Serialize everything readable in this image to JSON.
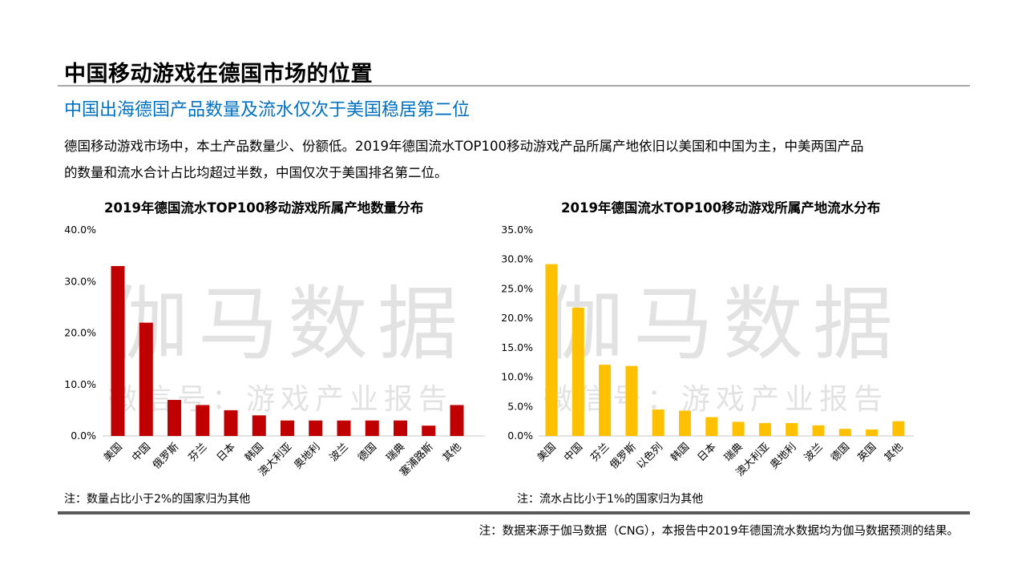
{
  "header": {
    "title": "中国移动游戏在德国市场的位置",
    "subtitle": "中国出海德国产品数量及流水仅次于美国稳居第二位"
  },
  "body": {
    "line1": "德国移动游戏市场中，本土产品数量少、份额低。2019年德国流水TOP100移动游戏产品所属产地依旧以美国和中国为主，中美两国产品",
    "line2": "的数量和流水合计占比均超过半数，中国仅次于美国排名第二位。"
  },
  "watermark": {
    "brand": "伽马数据",
    "wechat": "微信号：游戏产业报告"
  },
  "footer": "注：数据来源于伽马数据（CNG），本报告中2019年德国流水数据均为伽马数据预测的结果。",
  "colors": {
    "left_bars": "#c00000",
    "right_bars": "#ffc000",
    "subtitle": "#0070c0"
  },
  "chart_data": [
    {
      "type": "bar",
      "title": "2019年德国流水TOP100移动游戏所属产地数量分布",
      "note": "注：数量占比小于2%的国家归为其他",
      "categories": [
        "美国",
        "中国",
        "俄罗斯",
        "芬兰",
        "日本",
        "韩国",
        "澳大利亚",
        "奥地利",
        "波兰",
        "德国",
        "瑞典",
        "塞浦路斯",
        "其他"
      ],
      "values": [
        33,
        22,
        7,
        6,
        5,
        4,
        3,
        3,
        3,
        3,
        3,
        2,
        6
      ],
      "unit": "%",
      "ylim": [
        0,
        40
      ],
      "yticks": [
        "0.0%",
        "10.0%",
        "20.0%",
        "30.0%",
        "40.0%"
      ],
      "xlabel": "",
      "ylabel": "",
      "grid": false,
      "color": "#c00000"
    },
    {
      "type": "bar",
      "title": "2019年德国流水TOP100移动游戏所属产地流水分布",
      "note": "注：流水占比小于1%的国家归为其他",
      "categories": [
        "美国",
        "中国",
        "芬兰",
        "俄罗斯",
        "以色列",
        "韩国",
        "日本",
        "瑞典",
        "澳大利亚",
        "奥地利",
        "波兰",
        "德国",
        "英国",
        "其他"
      ],
      "values": [
        29.2,
        21.8,
        12.1,
        11.9,
        4.5,
        4.3,
        3.2,
        2.4,
        2.2,
        2.2,
        1.8,
        1.2,
        1.1,
        2.5
      ],
      "unit": "%",
      "ylim": [
        0,
        35
      ],
      "yticks": [
        "0.0%",
        "5.0%",
        "10.0%",
        "15.0%",
        "20.0%",
        "25.0%",
        "30.0%",
        "35.0%"
      ],
      "xlabel": "",
      "ylabel": "",
      "grid": false,
      "color": "#ffc000"
    }
  ]
}
